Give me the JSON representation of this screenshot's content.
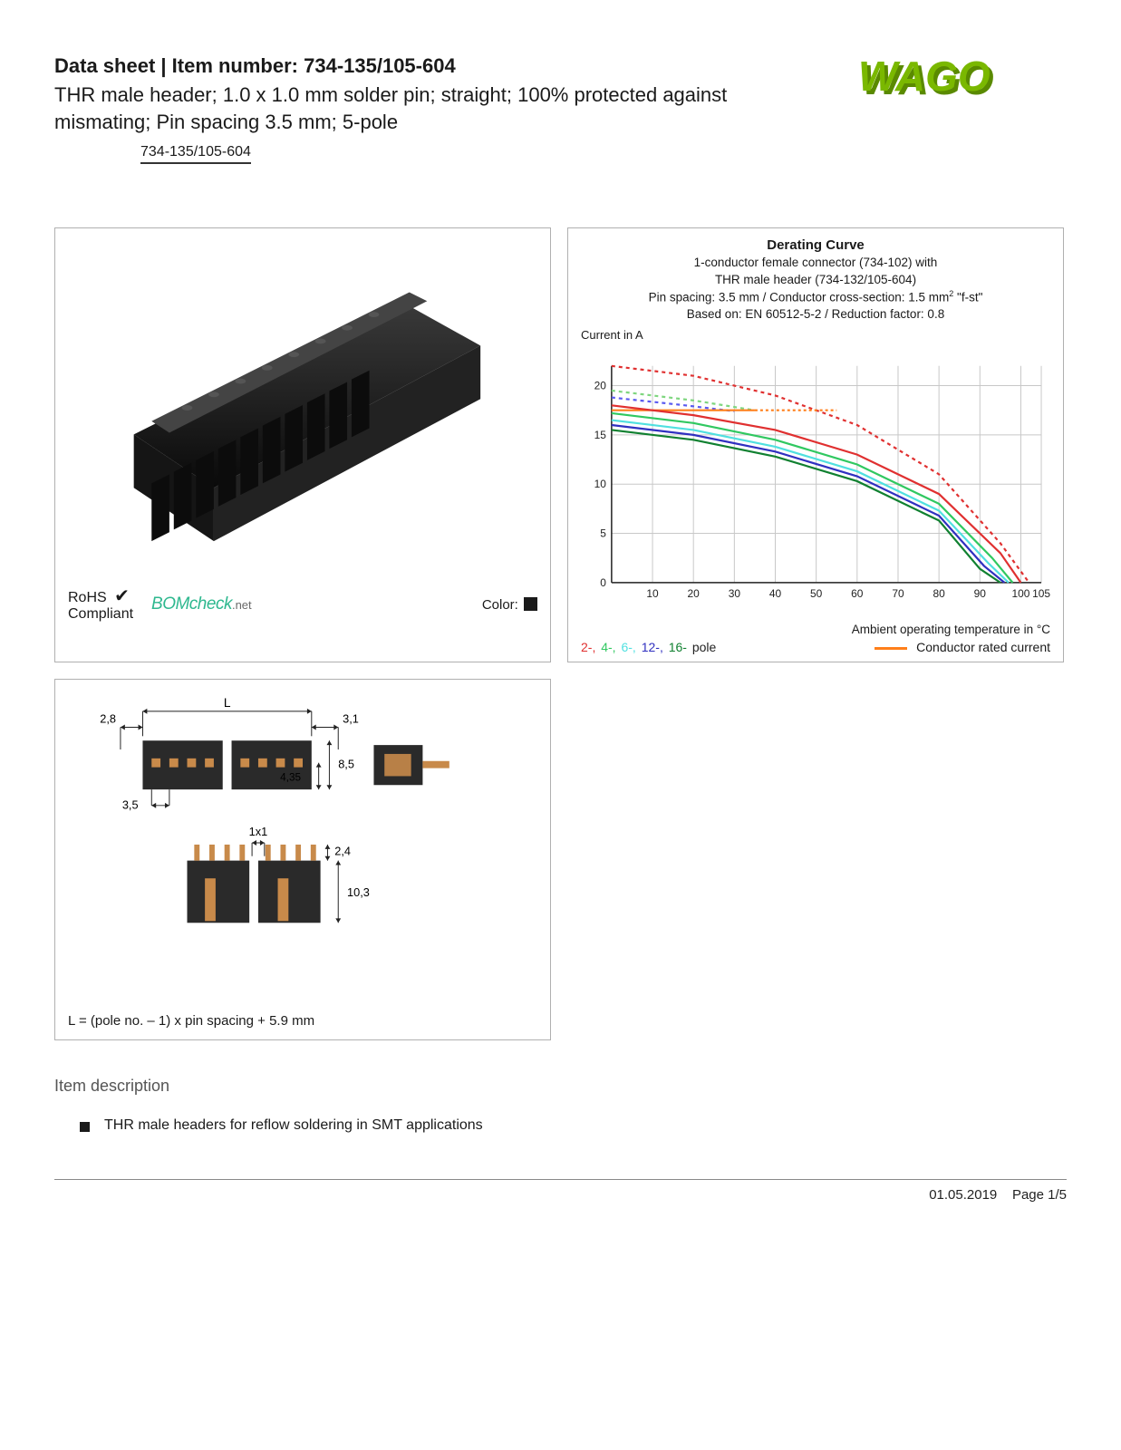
{
  "header": {
    "prefix": "Data sheet  |  Item number: ",
    "item_number": "734-135/105-604",
    "subtitle": "THR male header; 1.0 x 1.0 mm solder pin; straight; 100% protected against mismating; Pin spacing 3.5 mm; 5-pole",
    "item_link": "734-135/105-604"
  },
  "logo": {
    "text": "WAGO",
    "primary_color": "#7ab800",
    "shadow_color": "#5a8a00"
  },
  "compliance": {
    "rohs_line1": "RoHS",
    "rohs_line2": "Compliant",
    "bomcheck_main": "BOMcheck",
    "bomcheck_suffix": ".net",
    "color_label": "Color:",
    "color_swatch": "#1a1a1a"
  },
  "chart": {
    "title": "Derating Curve",
    "sub_line1": "1-conductor female connector (734-102) with",
    "sub_line2": "THR male header (734-132/105-604)",
    "sub_line3_a": "Pin spacing: 3.5 mm / Conductor cross-section: 1.5 mm",
    "sub_line3_b": " \"f-st\"",
    "sub_line4": "Based on: EN 60512-5-2 / Reduction factor: 0.8",
    "y_label": "Current in A",
    "x_label": "Ambient operating temperature in °C",
    "x_ticks": [
      10,
      20,
      30,
      40,
      50,
      60,
      70,
      80,
      90,
      100,
      105
    ],
    "y_ticks": [
      0,
      5,
      10,
      15,
      20
    ],
    "x_min": 0,
    "x_max": 105,
    "y_min": 0,
    "y_max": 22,
    "grid_color": "#c8c8c8",
    "background": "#ffffff",
    "series": {
      "pole2": {
        "color": "#e03030",
        "dash": "4,4",
        "points": [
          [
            0,
            22
          ],
          [
            20,
            21
          ],
          [
            40,
            19
          ],
          [
            60,
            16
          ],
          [
            80,
            11
          ],
          [
            95,
            4
          ],
          [
            102,
            0
          ]
        ]
      },
      "pole4": {
        "color": "#7fd67f",
        "dash": "4,4",
        "points": [
          [
            0,
            19.5
          ],
          [
            20,
            18.5
          ],
          [
            35,
            17.5
          ]
        ]
      },
      "pole6": {
        "color": "#5a5af0",
        "dash": "4,4",
        "points": [
          [
            0,
            18.8
          ],
          [
            18,
            18.0
          ],
          [
            30,
            17.4
          ]
        ]
      },
      "pole2s": {
        "color": "#e03030",
        "dash": "",
        "points": [
          [
            0,
            18
          ],
          [
            20,
            17
          ],
          [
            40,
            15.5
          ],
          [
            60,
            13
          ],
          [
            80,
            9
          ],
          [
            95,
            3
          ],
          [
            100,
            0
          ]
        ]
      },
      "pole4s": {
        "color": "#30c860",
        "dash": "",
        "points": [
          [
            0,
            17.2
          ],
          [
            20,
            16.2
          ],
          [
            40,
            14.5
          ],
          [
            60,
            12
          ],
          [
            80,
            8
          ],
          [
            93,
            2.5
          ],
          [
            98,
            0
          ]
        ]
      },
      "pole6s": {
        "color": "#50e0e0",
        "dash": "",
        "points": [
          [
            0,
            16.5
          ],
          [
            20,
            15.5
          ],
          [
            40,
            13.8
          ],
          [
            60,
            11.3
          ],
          [
            80,
            7.3
          ],
          [
            92,
            2
          ],
          [
            97,
            0
          ]
        ]
      },
      "pole12": {
        "color": "#3030c0",
        "dash": "",
        "points": [
          [
            0,
            16.0
          ],
          [
            20,
            15.0
          ],
          [
            40,
            13.3
          ],
          [
            60,
            10.8
          ],
          [
            80,
            6.8
          ],
          [
            91,
            1.7
          ],
          [
            96,
            0
          ]
        ]
      },
      "pole16": {
        "color": "#108030",
        "dash": "",
        "points": [
          [
            0,
            15.5
          ],
          [
            20,
            14.5
          ],
          [
            40,
            12.8
          ],
          [
            60,
            10.3
          ],
          [
            80,
            6.3
          ],
          [
            90,
            1.4
          ],
          [
            95,
            0
          ]
        ]
      },
      "rated": {
        "color": "#ff7f1a",
        "dash": "",
        "points": [
          [
            0,
            17.5
          ],
          [
            35,
            17.5
          ]
        ]
      },
      "rated_d": {
        "color": "#ff7f1a",
        "dash": "3,3",
        "points": [
          [
            35,
            17.5
          ],
          [
            55,
            17.5
          ]
        ]
      }
    },
    "legend": {
      "poles_label_suffix": " pole",
      "poles": [
        {
          "label": "2-",
          "color": "#e03030"
        },
        {
          "label": "4-",
          "color": "#30c860"
        },
        {
          "label": "6-",
          "color": "#50e0e0"
        },
        {
          "label": "12-",
          "color": "#3030c0"
        },
        {
          "label": "16-",
          "color": "#108030"
        }
      ],
      "rated_label": "Conductor rated current",
      "rated_color": "#ff7f1a"
    }
  },
  "dimensions": {
    "labels": {
      "l": "L",
      "d28": "2,8",
      "d31": "3,1",
      "d85": "8,5",
      "d435": "4,35",
      "d35": "3,5",
      "d1x1": "1x1",
      "d24": "2,4",
      "d103": "10,3"
    },
    "formula": "L = (pole no. – 1) x pin spacing + 5.9 mm",
    "body_color": "#2a2a2a",
    "pin_color": "#c88a4a"
  },
  "description": {
    "heading": "Item description",
    "bullet1": "THR male headers for reflow soldering in SMT applications"
  },
  "footer": {
    "date": "01.05.2019",
    "page": "Page 1/5"
  }
}
